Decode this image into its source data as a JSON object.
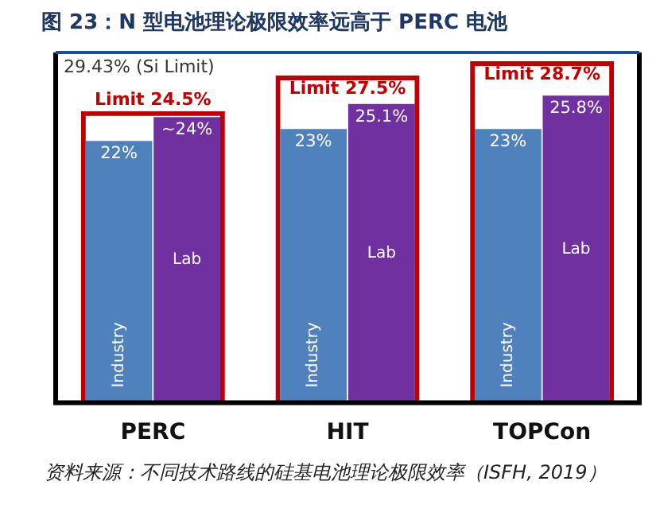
{
  "chart_data": {
    "type": "bar",
    "title": "图 23：N 型电池理论极限效率远高于 PERC 电池",
    "categories": [
      "PERC",
      "HIT",
      "TOPCon"
    ],
    "series": [
      {
        "color": "#c00000",
        "values": [
          24.5,
          27.5,
          28.7
        ],
        "value_labels": [
          "Limit 24.5%",
          "Limit 27.5%",
          "Limit 28.7%"
        ]
      },
      {
        "name": "Industry",
        "color": "#4f81bd",
        "values": [
          22,
          23,
          23
        ],
        "value_labels": [
          "22%",
          "23%",
          "23%"
        ]
      },
      {
        "name": "Lab",
        "color": "#7030a0",
        "values": [
          24,
          25.1,
          25.8
        ],
        "value_labels": [
          "~24%",
          "25.1%",
          "25.8%"
        ]
      }
    ],
    "ref_lines": [
      {
        "axis": "y",
        "value": 29.43,
        "label": "29.43% (Si Limit)",
        "color": "#1f4e9a"
      }
    ],
    "annotations": [
      "资料来源：不同技术路线的硅基电池理论极限效率（ISFH, 2019）"
    ]
  }
}
